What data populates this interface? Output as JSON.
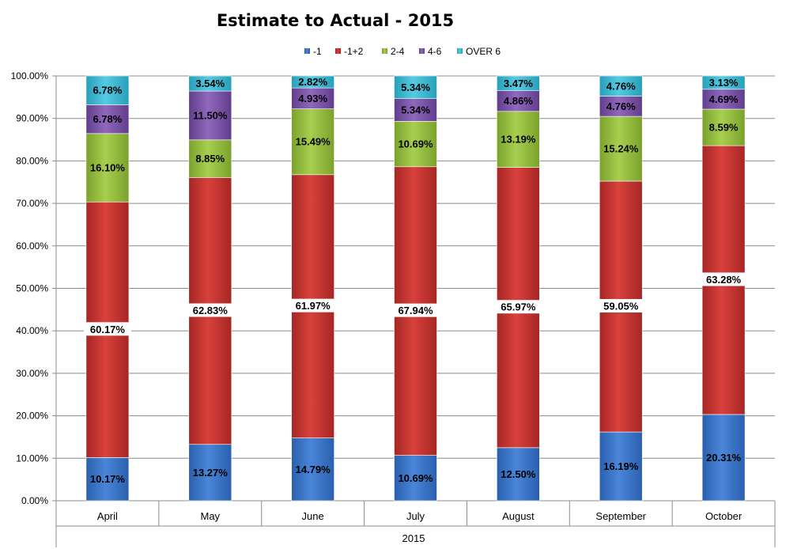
{
  "chart_data": {
    "type": "bar",
    "stacked": true,
    "title": "Estimate to Actual - 2015",
    "x_group_label": "2015",
    "categories": [
      "April",
      "May",
      "June",
      "July",
      "August",
      "September",
      "October"
    ],
    "ylim": [
      0,
      100
    ],
    "y_ticks": [
      "0.00%",
      "10.00%",
      "20.00%",
      "30.00%",
      "40.00%",
      "50.00%",
      "60.00%",
      "70.00%",
      "80.00%",
      "90.00%",
      "100.00%"
    ],
    "grid": true,
    "legend_position": "top",
    "series": [
      {
        "name": "-1",
        "color": "#3a73c6",
        "values": [
          10.17,
          13.27,
          14.79,
          10.69,
          12.5,
          16.19,
          20.31
        ]
      },
      {
        "name": "-1+2",
        "color": "#c3302e",
        "values": [
          60.17,
          62.83,
          61.97,
          67.94,
          65.97,
          59.05,
          63.28
        ]
      },
      {
        "name": "2-4",
        "color": "#93bb3c",
        "values": [
          16.1,
          8.85,
          15.49,
          10.69,
          13.19,
          15.24,
          8.59
        ]
      },
      {
        "name": "4-6",
        "color": "#7a52a6",
        "values": [
          6.78,
          11.5,
          4.93,
          5.34,
          4.86,
          4.76,
          4.69
        ]
      },
      {
        "name": "OVER 6",
        "color": "#3ab6cf",
        "values": [
          6.78,
          3.54,
          2.82,
          5.34,
          3.47,
          4.76,
          3.13
        ]
      }
    ],
    "data_labels": [
      [
        "10.17%",
        "13.27%",
        "14.79%",
        "10.69%",
        "12.50%",
        "16.19%",
        "20.31%"
      ],
      [
        "60.17%",
        "62.83%",
        "61.97%",
        "67.94%",
        "65.97%",
        "59.05%",
        "63.28%"
      ],
      [
        "16.10%",
        "8.85%",
        "15.49%",
        "10.69%",
        "13.19%",
        "15.24%",
        "8.59%"
      ],
      [
        "6.78%",
        "11.50%",
        "4.93%",
        "5.34%",
        "4.86%",
        "4.76%",
        "4.69%"
      ],
      [
        "6.78%",
        "3.54%",
        "2.82%",
        "5.34%",
        "3.47%",
        "4.76%",
        "3.13%"
      ]
    ]
  }
}
